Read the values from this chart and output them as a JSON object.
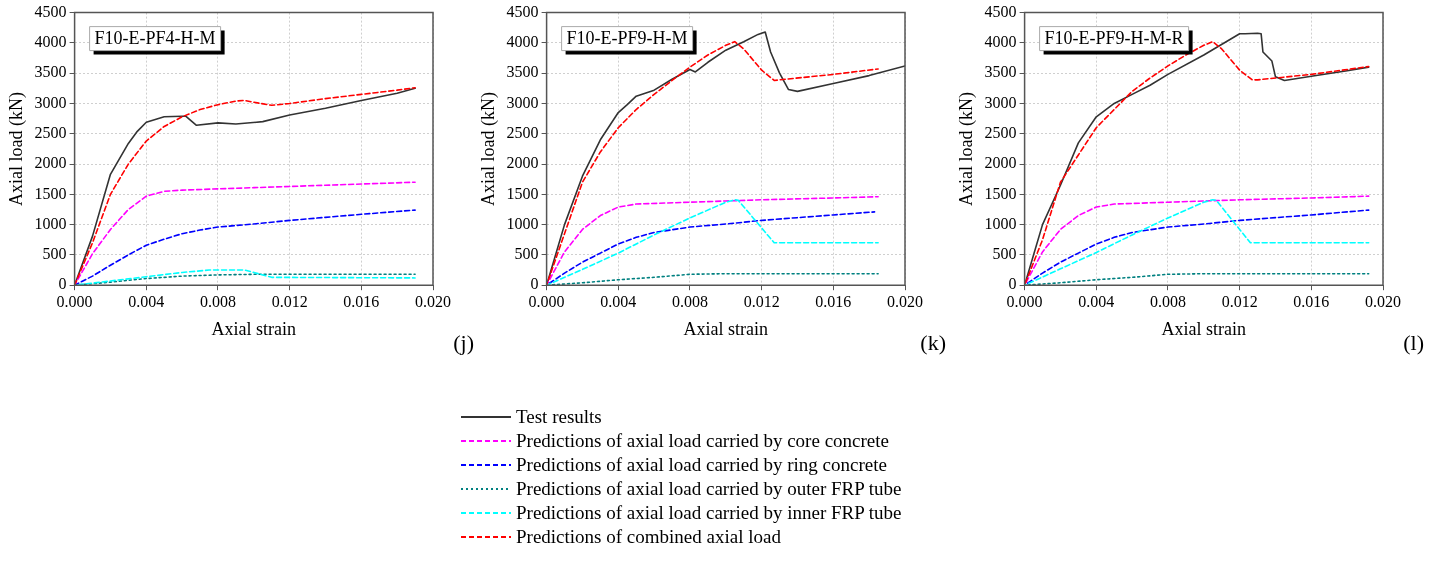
{
  "chart_data": [
    {
      "type": "line",
      "xlabel": "Axial strain",
      "ylabel": "Axial load (kN)",
      "annotations": [
        "F10-E-PF4-H-M",
        "(j)"
      ],
      "xlim": [
        0,
        0.02
      ],
      "ylim": [
        0,
        4500
      ],
      "xticks": [
        {
          "value": 0,
          "label": "0.000"
        },
        {
          "value": 0.004,
          "label": "0.004"
        },
        {
          "value": 0.008,
          "label": "0.008"
        },
        {
          "value": 0.012,
          "label": "0.012"
        },
        {
          "value": 0.016,
          "label": "0.016"
        },
        {
          "value": 0.02,
          "label": "0.020"
        }
      ],
      "yticks": [
        0,
        500,
        1000,
        1500,
        2000,
        2500,
        3000,
        3500,
        4000,
        4500
      ],
      "grid": true,
      "legend": "bottom",
      "marker": "none",
      "series": [
        {
          "name": "Test results",
          "color": "#333333",
          "line_style": "solid",
          "x": [
            0,
            0.001,
            0.002,
            0.003,
            0.0035,
            0.004,
            0.005,
            0.006,
            0.0062,
            0.0068,
            0.008,
            0.009,
            0.0105,
            0.012,
            0.014,
            0.016,
            0.018,
            0.019
          ],
          "values": [
            0,
            810,
            1830,
            2340,
            2540,
            2690,
            2780,
            2790,
            2790,
            2640,
            2680,
            2660,
            2700,
            2810,
            2920,
            3050,
            3170,
            3250
          ]
        },
        {
          "name": "Predictions of axial load carried by core concrete",
          "color": "#ff00ff",
          "line_style": "dashed",
          "x": [
            0,
            0.001,
            0.002,
            0.003,
            0.004,
            0.005,
            0.006,
            0.008,
            0.01,
            0.012,
            0.014,
            0.016,
            0.019
          ],
          "values": [
            0,
            520,
            920,
            1250,
            1470,
            1550,
            1570,
            1590,
            1610,
            1630,
            1650,
            1670,
            1700
          ]
        },
        {
          "name": "Predictions of axial load carried by ring concrete",
          "color": "#0000ff",
          "line_style": "dashed",
          "x": [
            0,
            0.001,
            0.002,
            0.003,
            0.004,
            0.005,
            0.006,
            0.007,
            0.008,
            0.01,
            0.012,
            0.014,
            0.016,
            0.019
          ],
          "values": [
            0,
            150,
            330,
            500,
            660,
            760,
            850,
            910,
            960,
            1010,
            1070,
            1120,
            1170,
            1240
          ]
        },
        {
          "name": "Predictions of axial load carried by outer FRP tube",
          "color": "#008080",
          "line_style": "dotted",
          "x": [
            0,
            0.002,
            0.004,
            0.006,
            0.008,
            0.01,
            0.019
          ],
          "values": [
            0,
            50,
            110,
            150,
            170,
            180,
            180
          ]
        },
        {
          "name": "Predictions of axial load carried by inner FRP tube",
          "color": "#00ffff",
          "line_style": "dashed",
          "x": [
            0,
            0.002,
            0.004,
            0.006,
            0.0075,
            0.0095,
            0.011,
            0.019
          ],
          "values": [
            0,
            70,
            140,
            210,
            250,
            250,
            130,
            120
          ]
        },
        {
          "name": "Predictions of combined axial load",
          "color": "#ff0000",
          "line_style": "dashed",
          "x": [
            0,
            0.001,
            0.002,
            0.003,
            0.004,
            0.005,
            0.006,
            0.007,
            0.008,
            0.009,
            0.0095,
            0.01,
            0.011,
            0.012,
            0.014,
            0.016,
            0.018,
            0.019
          ],
          "values": [
            0,
            700,
            1500,
            2000,
            2380,
            2620,
            2780,
            2900,
            2980,
            3040,
            3050,
            3020,
            2970,
            3000,
            3080,
            3150,
            3220,
            3260
          ]
        }
      ]
    },
    {
      "type": "line",
      "xlabel": "Axial strain",
      "ylabel": "Axial load (kN)",
      "annotations": [
        "F10-E-PF9-H-M",
        "(k)"
      ],
      "xlim": [
        0,
        0.02
      ],
      "ylim": [
        0,
        4500
      ],
      "xticks": [
        {
          "value": 0,
          "label": "0.000"
        },
        {
          "value": 0.004,
          "label": "0.004"
        },
        {
          "value": 0.008,
          "label": "0.008"
        },
        {
          "value": 0.012,
          "label": "0.012"
        },
        {
          "value": 0.016,
          "label": "0.016"
        },
        {
          "value": 0.02,
          "label": "0.020"
        }
      ],
      "yticks": [
        0,
        500,
        1000,
        1500,
        2000,
        2500,
        3000,
        3500,
        4000,
        4500
      ],
      "grid": true,
      "marker": "none",
      "series": [
        {
          "color": "#333333",
          "line_style": "solid",
          "x": [
            0,
            0.001,
            0.002,
            0.003,
            0.004,
            0.0045,
            0.005,
            0.006,
            0.007,
            0.008,
            0.0083,
            0.009,
            0.01,
            0.011,
            0.0118,
            0.0122,
            0.0125,
            0.013,
            0.0135,
            0.014,
            0.016,
            0.018,
            0.02
          ],
          "values": [
            0,
            1000,
            1800,
            2400,
            2850,
            2980,
            3120,
            3220,
            3400,
            3560,
            3520,
            3680,
            3880,
            4020,
            4140,
            4180,
            3850,
            3500,
            3230,
            3200,
            3330,
            3460,
            3620
          ]
        },
        {
          "color": "#ff00ff",
          "line_style": "dashed",
          "x": [
            0,
            0.001,
            0.002,
            0.003,
            0.004,
            0.005,
            0.008,
            0.01,
            0.012,
            0.016,
            0.0185
          ],
          "values": [
            0,
            550,
            920,
            1150,
            1290,
            1340,
            1370,
            1390,
            1410,
            1440,
            1460
          ]
        },
        {
          "color": "#0000ff",
          "line_style": "dashed",
          "x": [
            0,
            0.001,
            0.002,
            0.003,
            0.004,
            0.005,
            0.006,
            0.008,
            0.01,
            0.012,
            0.016,
            0.0183
          ],
          "values": [
            0,
            200,
            380,
            530,
            680,
            790,
            870,
            960,
            1010,
            1070,
            1160,
            1210
          ]
        },
        {
          "color": "#008080",
          "line_style": "dotted",
          "x": [
            0,
            0.002,
            0.004,
            0.006,
            0.008,
            0.01,
            0.0185
          ],
          "values": [
            0,
            40,
            90,
            130,
            180,
            190,
            190
          ]
        },
        {
          "color": "#00ffff",
          "line_style": "dashed",
          "x": [
            0,
            0.002,
            0.004,
            0.006,
            0.008,
            0.01,
            0.0105,
            0.0107,
            0.0127,
            0.0185
          ],
          "values": [
            0,
            260,
            530,
            830,
            1110,
            1370,
            1410,
            1400,
            700,
            700
          ]
        },
        {
          "color": "#ff0000",
          "line_style": "dashed",
          "x": [
            0,
            0.001,
            0.002,
            0.003,
            0.004,
            0.005,
            0.006,
            0.007,
            0.008,
            0.009,
            0.01,
            0.0105,
            0.011,
            0.012,
            0.0127,
            0.013,
            0.016,
            0.0185
          ],
          "values": [
            0,
            850,
            1700,
            2200,
            2600,
            2900,
            3150,
            3380,
            3600,
            3800,
            3960,
            4020,
            3900,
            3550,
            3380,
            3390,
            3480,
            3570
          ]
        }
      ]
    },
    {
      "type": "line",
      "xlabel": "Axial strain",
      "ylabel": "Axial load (kN)",
      "annotations": [
        "F10-E-PF9-H-M-R",
        "(l)"
      ],
      "xlim": [
        0,
        0.02
      ],
      "ylim": [
        0,
        4500
      ],
      "xticks": [
        {
          "value": 0,
          "label": "0.000"
        },
        {
          "value": 0.004,
          "label": "0.004"
        },
        {
          "value": 0.008,
          "label": "0.008"
        },
        {
          "value": 0.012,
          "label": "0.012"
        },
        {
          "value": 0.016,
          "label": "0.016"
        },
        {
          "value": 0.02,
          "label": "0.020"
        }
      ],
      "yticks": [
        0,
        500,
        1000,
        1500,
        2000,
        2500,
        3000,
        3500,
        4000,
        4500
      ],
      "grid": true,
      "marker": "none",
      "series": [
        {
          "color": "#333333",
          "line_style": "solid",
          "x": [
            0,
            0.001,
            0.002,
            0.003,
            0.004,
            0.005,
            0.006,
            0.007,
            0.008,
            0.01,
            0.012,
            0.0123,
            0.013,
            0.0132,
            0.0133,
            0.0138,
            0.014,
            0.0145,
            0.016,
            0.018,
            0.0192
          ],
          "values": [
            0,
            1000,
            1650,
            2350,
            2780,
            3000,
            3150,
            3300,
            3480,
            3800,
            4150,
            4150,
            4160,
            4150,
            3850,
            3700,
            3440,
            3380,
            3450,
            3540,
            3600
          ]
        },
        {
          "color": "#ff00ff",
          "line_style": "dashed",
          "x": [
            0,
            0.001,
            0.002,
            0.003,
            0.004,
            0.005,
            0.008,
            0.01,
            0.012,
            0.016,
            0.0192
          ],
          "values": [
            0,
            550,
            920,
            1150,
            1290,
            1340,
            1370,
            1390,
            1410,
            1440,
            1470
          ]
        },
        {
          "color": "#0000ff",
          "line_style": "dashed",
          "x": [
            0,
            0.001,
            0.002,
            0.003,
            0.004,
            0.005,
            0.006,
            0.008,
            0.01,
            0.012,
            0.016,
            0.0192
          ],
          "values": [
            0,
            200,
            380,
            530,
            680,
            790,
            870,
            960,
            1010,
            1070,
            1160,
            1240
          ]
        },
        {
          "color": "#008080",
          "line_style": "dotted",
          "x": [
            0,
            0.002,
            0.004,
            0.006,
            0.008,
            0.01,
            0.0192
          ],
          "values": [
            0,
            40,
            90,
            130,
            180,
            190,
            190
          ]
        },
        {
          "color": "#00ffff",
          "line_style": "dashed",
          "x": [
            0,
            0.002,
            0.004,
            0.006,
            0.008,
            0.01,
            0.0105,
            0.0107,
            0.0126,
            0.0192
          ],
          "values": [
            0,
            270,
            540,
            830,
            1110,
            1370,
            1410,
            1400,
            700,
            700
          ]
        },
        {
          "color": "#ff0000",
          "line_style": "dashed",
          "x": [
            0,
            0.001,
            0.002,
            0.003,
            0.004,
            0.005,
            0.006,
            0.007,
            0.008,
            0.009,
            0.01,
            0.0105,
            0.011,
            0.012,
            0.0127,
            0.013,
            0.016,
            0.0192
          ],
          "values": [
            0,
            750,
            1700,
            2150,
            2600,
            2900,
            3200,
            3420,
            3620,
            3800,
            3960,
            4020,
            3900,
            3550,
            3390,
            3390,
            3480,
            3610
          ]
        }
      ]
    }
  ]
}
